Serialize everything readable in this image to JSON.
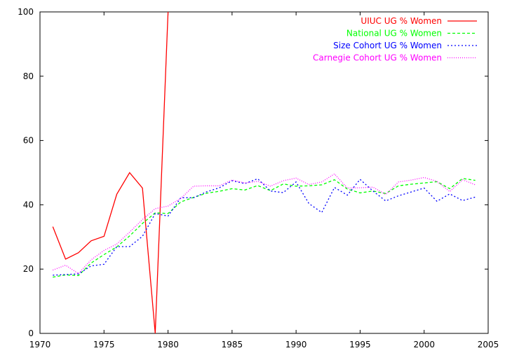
{
  "chart_data": {
    "type": "line",
    "title": "",
    "xlabel": "",
    "ylabel": "",
    "xlim": [
      1970,
      2005
    ],
    "ylim": [
      0,
      100
    ],
    "xticks": [
      1970,
      1975,
      1980,
      1985,
      1990,
      1995,
      2000,
      2005
    ],
    "yticks": [
      0,
      20,
      40,
      60,
      80,
      100
    ],
    "grid": false,
    "legend_position": "top-right",
    "series": [
      {
        "name": "UIUC UG % Women",
        "color": "#ff0000",
        "dash": "solid",
        "x": [
          1971,
          1972,
          1973,
          1974,
          1975,
          1976,
          1977,
          1978,
          1979,
          1980
        ],
        "y": [
          33.2,
          23.1,
          25.1,
          28.8,
          30.2,
          43.3,
          50.0,
          45.2,
          0.0,
          100.0
        ]
      },
      {
        "name": "National UG % Women",
        "color": "#00ff00",
        "dash": "dashed",
        "x": [
          1971,
          1972,
          1973,
          1974,
          1975,
          1976,
          1977,
          1978,
          1979,
          1980,
          1981,
          1982,
          1983,
          1984,
          1985,
          1986,
          1987,
          1988,
          1989,
          1990,
          1991,
          1992,
          1993,
          1994,
          1995,
          1996,
          1997,
          1998,
          1999,
          2000,
          2001,
          2002,
          2003,
          2004
        ],
        "y": [
          17.5,
          18.2,
          18.0,
          21.9,
          24.5,
          26.9,
          30.3,
          34.2,
          37.5,
          37.3,
          40.9,
          42.3,
          43.6,
          44.2,
          45.0,
          44.6,
          46.0,
          44.4,
          46.5,
          45.8,
          45.9,
          46.2,
          47.8,
          44.9,
          43.7,
          44.3,
          43.5,
          45.9,
          46.4,
          46.8,
          47.2,
          45.0,
          48.2,
          47.6
        ]
      },
      {
        "name": "Size Cohort UG % Women",
        "color": "#0000ff",
        "dash": "dotted",
        "x": [
          1971,
          1972,
          1973,
          1974,
          1975,
          1976,
          1977,
          1978,
          1979,
          1980,
          1981,
          1982,
          1983,
          1984,
          1985,
          1986,
          1987,
          1988,
          1989,
          1990,
          1991,
          1992,
          1993,
          1994,
          1995,
          1996,
          1997,
          1998,
          1999,
          2000,
          2001,
          2002,
          2003,
          2004
        ],
        "y": [
          18.1,
          18.3,
          18.5,
          21.0,
          21.5,
          27.0,
          27.0,
          30.2,
          37.3,
          36.5,
          42.2,
          42.2,
          44.0,
          45.3,
          47.5,
          46.6,
          48.1,
          44.3,
          43.8,
          47.1,
          40.4,
          37.6,
          45.4,
          43.0,
          47.9,
          44.3,
          41.2,
          42.8,
          44.0,
          45.2,
          41.1,
          43.4,
          41.3,
          42.4
        ]
      },
      {
        "name": "Carnegie Cohort UG % Women",
        "color": "#ff00ff",
        "dash": "fine-dotted",
        "x": [
          1971,
          1972,
          1973,
          1974,
          1975,
          1976,
          1977,
          1978,
          1979,
          1980,
          1981,
          1982,
          1983,
          1984,
          1985,
          1986,
          1987,
          1988,
          1989,
          1990,
          1991,
          1992,
          1993,
          1994,
          1995,
          1996,
          1997,
          1998,
          1999,
          2000,
          2001,
          2002,
          2003,
          2004
        ],
        "y": [
          19.7,
          21.2,
          18.6,
          22.9,
          25.8,
          27.8,
          31.5,
          35.4,
          38.8,
          39.6,
          42.0,
          45.8,
          45.9,
          45.9,
          47.7,
          46.8,
          47.3,
          45.8,
          47.5,
          48.3,
          46.3,
          47.1,
          49.6,
          45.2,
          45.3,
          45.5,
          43.2,
          47.1,
          47.7,
          48.5,
          47.3,
          44.1,
          47.8,
          46.2
        ]
      }
    ]
  }
}
